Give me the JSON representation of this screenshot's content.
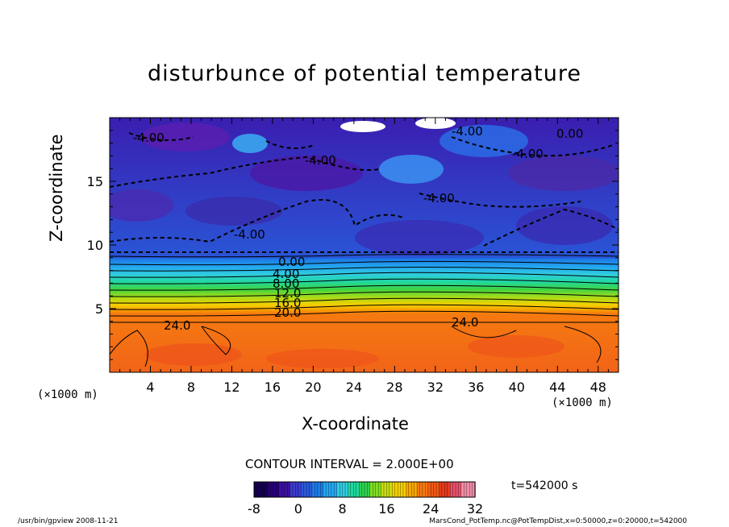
{
  "chart_data": {
    "type": "heatmap",
    "title": "disturbunce of potential temperature",
    "xlabel": "X-coordinate",
    "ylabel": "Z-coordinate",
    "x_unit": "(×1000 m)",
    "y_unit": "(×1000 m)",
    "x_unit_secondary": "(×1000 m)",
    "xlim": [
      0,
      50
    ],
    "ylim": [
      0,
      20
    ],
    "x_ticks": [
      4,
      8,
      12,
      16,
      20,
      24,
      28,
      32,
      36,
      40,
      44,
      48
    ],
    "y_ticks": [
      5,
      10,
      15
    ],
    "contour_labels": [
      "0.00",
      "4.00",
      "8.00",
      "12.0",
      "16.0",
      "20.0",
      "24.0",
      "24.0",
      "-4.00",
      "-4.00",
      "-4.00",
      "-4.00",
      "-4.00",
      "-4.00",
      "0.00"
    ],
    "colorbar": {
      "min": -8,
      "max": 32,
      "ticks": [
        -8,
        0,
        8,
        16,
        24,
        32
      ]
    },
    "contour_interval": "CONTOUR INTERVAL = 2.000E+00",
    "time": "t=542000 s",
    "palette": [
      "#140050",
      "#28007a",
      "#3a10a0",
      "#3a3acc",
      "#2a5ad8",
      "#1e7ae6",
      "#22a6f0",
      "#30cce0",
      "#20d8a0",
      "#30d050",
      "#80dc20",
      "#c8dc10",
      "#f4d000",
      "#f8a800",
      "#f87a10",
      "#f05a14",
      "#e63a1a",
      "#e8506a",
      "#f08ca8"
    ]
  },
  "footer": {
    "left": "/usr/bin/gpview   2008-11-21",
    "right": "MarsCond_PotTemp.nc@PotTempDist,x=0:50000,z=0:20000,t=542000"
  }
}
